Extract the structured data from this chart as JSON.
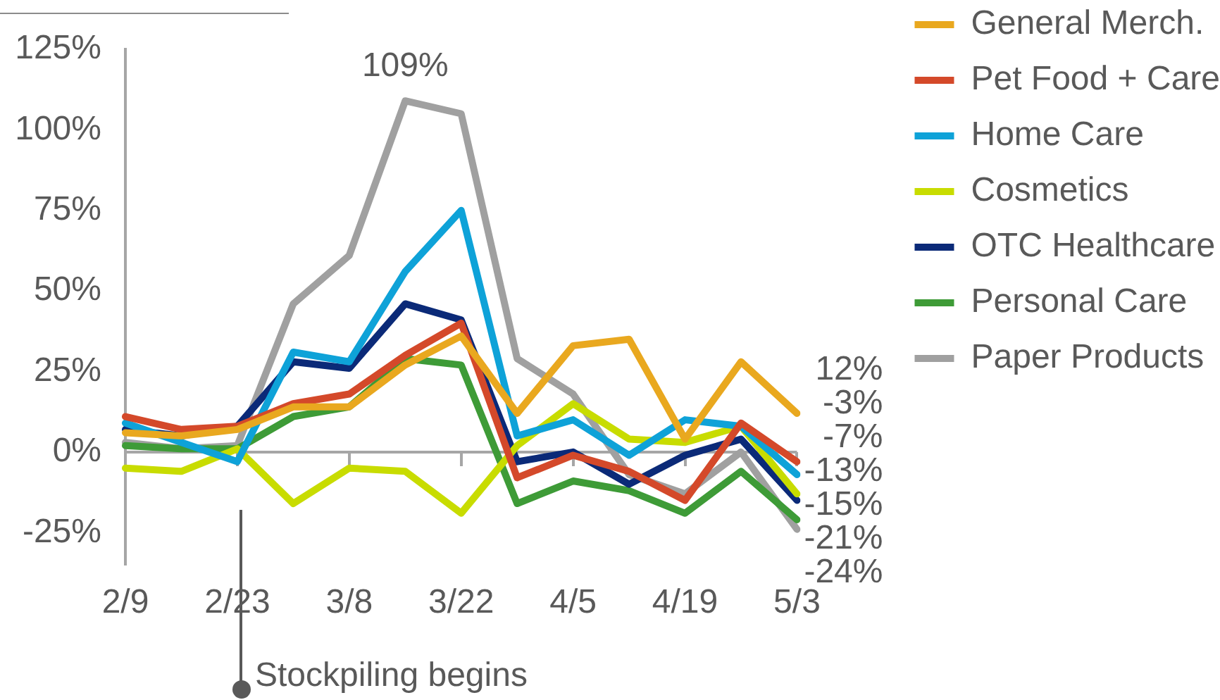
{
  "chart_data": {
    "type": "line",
    "categories": [
      "2/9",
      null,
      "2/23",
      null,
      "3/8",
      null,
      "3/22",
      null,
      "4/5",
      null,
      "4/19",
      null,
      "5/3"
    ],
    "series": [
      {
        "name": "General Merch.",
        "color": "#e9a81f",
        "values": [
          6,
          5,
          7,
          14,
          14,
          27,
          36,
          12,
          33,
          35,
          4,
          28,
          12
        ],
        "value_labels": [
          null,
          null,
          null,
          null,
          null,
          null,
          null,
          null,
          null,
          null,
          null,
          null,
          "12%"
        ]
      },
      {
        "name": "Pet Food + Care",
        "color": "#d4492a",
        "values": [
          11,
          7,
          8,
          15,
          18,
          30,
          40,
          -8,
          -1,
          -6,
          -15,
          9,
          -3
        ],
        "value_labels": [
          null,
          null,
          null,
          null,
          null,
          null,
          null,
          null,
          null,
          null,
          null,
          null,
          "-3%"
        ]
      },
      {
        "name": "Home Care",
        "color": "#0ea2d8",
        "values": [
          9,
          3,
          -3,
          31,
          28,
          56,
          75,
          5,
          10,
          -1,
          10,
          8,
          -7
        ],
        "value_labels": [
          null,
          null,
          null,
          null,
          null,
          null,
          null,
          null,
          null,
          null,
          null,
          null,
          "-7%"
        ]
      },
      {
        "name": "Cosmetics",
        "color": "#c8dc00",
        "values": [
          -5,
          -6,
          1,
          -16,
          -5,
          -6,
          -19,
          2,
          15,
          4,
          3,
          8,
          -13
        ],
        "value_labels": [
          null,
          null,
          null,
          null,
          null,
          null,
          null,
          null,
          null,
          null,
          null,
          null,
          "-13%"
        ]
      },
      {
        "name": "OTC Healthcare",
        "color": "#0b2a78",
        "values": [
          7,
          5,
          8,
          28,
          26,
          46,
          41,
          -3,
          0,
          -10,
          -1,
          4,
          -15
        ],
        "value_labels": [
          null,
          null,
          null,
          null,
          null,
          null,
          null,
          null,
          null,
          null,
          null,
          null,
          "-15%"
        ]
      },
      {
        "name": "Personal Care",
        "color": "#3e9b37",
        "values": [
          2,
          1,
          1,
          11,
          14,
          29,
          27,
          -16,
          -9,
          -12,
          -19,
          -6,
          -21
        ],
        "value_labels": [
          null,
          null,
          null,
          null,
          null,
          null,
          null,
          null,
          null,
          null,
          null,
          null,
          "-21%"
        ]
      },
      {
        "name": "Paper Products",
        "color": "#a0a0a0",
        "values": [
          3,
          1,
          2,
          46,
          61,
          109,
          105,
          29,
          18,
          -7,
          -13,
          0,
          -24
        ],
        "value_labels": [
          null,
          null,
          null,
          null,
          null,
          "109%",
          null,
          null,
          null,
          null,
          null,
          null,
          "-24%"
        ]
      }
    ],
    "ylim": [
      -35,
      125
    ],
    "yticks": [
      {
        "value": -25,
        "label": "-25%"
      },
      {
        "value": 0,
        "label": "0%"
      },
      {
        "value": 25,
        "label": "25%"
      },
      {
        "value": 50,
        "label": "50%"
      },
      {
        "value": 75,
        "label": "75%"
      },
      {
        "value": 100,
        "label": "100%"
      },
      {
        "value": 125,
        "label": "125%"
      }
    ],
    "ref_lines": [
      {
        "axis": "y",
        "value": 0,
        "color": "#a6a6a6"
      }
    ],
    "grid": false,
    "legend": "top right",
    "marker": "none",
    "annotations": [
      "Stockpiling begins"
    ]
  }
}
